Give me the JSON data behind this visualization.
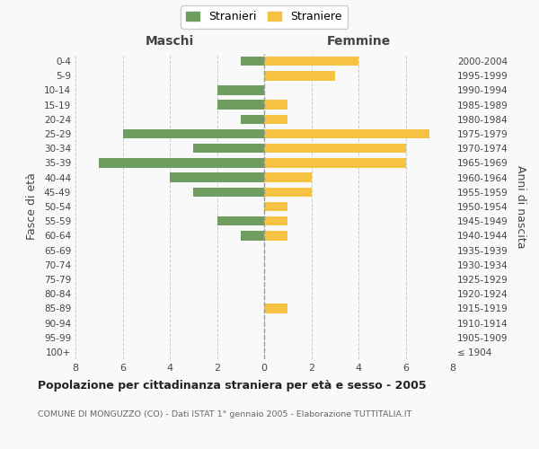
{
  "age_groups": [
    "100+",
    "95-99",
    "90-94",
    "85-89",
    "80-84",
    "75-79",
    "70-74",
    "65-69",
    "60-64",
    "55-59",
    "50-54",
    "45-49",
    "40-44",
    "35-39",
    "30-34",
    "25-29",
    "20-24",
    "15-19",
    "10-14",
    "5-9",
    "0-4"
  ],
  "birth_years": [
    "≤ 1904",
    "1905-1909",
    "1910-1914",
    "1915-1919",
    "1920-1924",
    "1925-1929",
    "1930-1934",
    "1935-1939",
    "1940-1944",
    "1945-1949",
    "1950-1954",
    "1955-1959",
    "1960-1964",
    "1965-1969",
    "1970-1974",
    "1975-1979",
    "1980-1984",
    "1985-1989",
    "1990-1994",
    "1995-1999",
    "2000-2004"
  ],
  "males": [
    0,
    0,
    0,
    0,
    0,
    0,
    0,
    0,
    1,
    2,
    0,
    3,
    4,
    7,
    3,
    6,
    1,
    2,
    2,
    0,
    1
  ],
  "females": [
    0,
    0,
    0,
    1,
    0,
    0,
    0,
    0,
    1,
    1,
    1,
    2,
    2,
    6,
    6,
    7,
    1,
    1,
    0,
    3,
    4
  ],
  "male_color": "#6f9c5f",
  "female_color": "#f5c242",
  "background_color": "#f9f9f9",
  "grid_color": "#cccccc",
  "title": "Popolazione per cittadinanza straniera per età e sesso - 2005",
  "subtitle": "COMUNE DI MONGUZZO (CO) - Dati ISTAT 1° gennaio 2005 - Elaborazione TUTTITALIA.IT",
  "ylabel_left": "Fasce di età",
  "ylabel_right": "Anni di nascita",
  "xlabel_left": "Maschi",
  "xlabel_right": "Femmine",
  "legend_stranieri": "Stranieri",
  "legend_straniere": "Straniere",
  "xlim": 8
}
